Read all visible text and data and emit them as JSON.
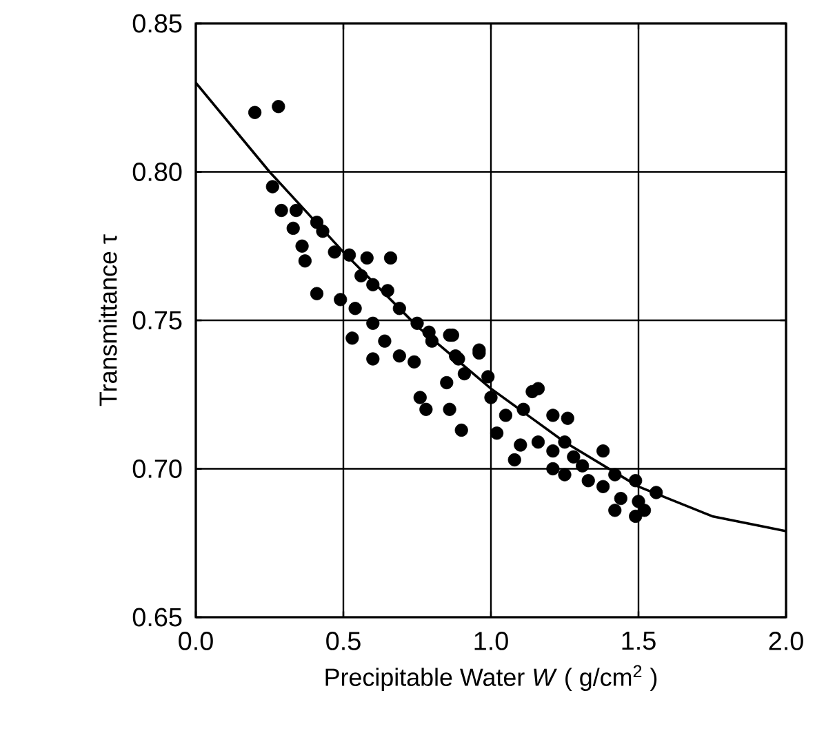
{
  "chart_data": {
    "type": "scatter",
    "xlabel": "Precipitable Water *W*  ( g/cm$^{2}$ )",
    "ylabel": "Transmittance   τ",
    "xlim": [
      0,
      2
    ],
    "ylim": [
      0.65,
      0.85
    ],
    "xticks": [
      {
        "value": 0,
        "label": "0.0"
      },
      {
        "value": 0.5,
        "label": "0.5"
      },
      {
        "value": 1,
        "label": "1.0"
      },
      {
        "value": 1.5,
        "label": "1.5"
      },
      {
        "value": 2,
        "label": "2.0"
      }
    ],
    "yticks": [
      {
        "value": 0.65,
        "label": "0.65"
      },
      {
        "value": 0.7,
        "label": "0.70"
      },
      {
        "value": 0.75,
        "label": "0.75"
      },
      {
        "value": 0.8,
        "label": "0.80"
      },
      {
        "value": 0.85,
        "label": "0.85"
      }
    ],
    "grid": true,
    "marker": "circle",
    "series": [
      {
        "color": "#000000",
        "x": [
          0.2,
          0.28,
          0.26,
          0.29,
          0.34,
          0.33,
          0.41,
          0.43,
          0.36,
          0.37,
          0.41,
          0.47,
          0.52,
          0.58,
          0.66,
          0.49,
          0.54,
          0.56,
          0.6,
          0.65,
          0.53,
          0.6,
          0.6,
          0.69,
          0.75,
          0.64,
          0.69,
          0.74,
          0.8,
          0.86,
          0.88,
          0.96,
          0.76,
          0.78,
          0.85,
          0.91,
          0.9,
          0.99,
          1.0,
          1.14,
          0.79,
          0.87,
          0.96,
          0.86,
          0.89,
          1.16,
          1.05,
          1.11,
          1.21,
          1.26,
          1.02,
          1.1,
          1.08,
          1.16,
          1.21,
          1.25,
          1.28,
          1.38,
          1.21,
          1.25,
          1.31,
          1.42,
          1.33,
          1.38,
          1.49,
          1.56,
          1.44,
          1.5,
          1.42,
          1.52,
          1.49
        ],
        "values": [
          0.82,
          0.822,
          0.795,
          0.787,
          0.787,
          0.781,
          0.783,
          0.78,
          0.775,
          0.77,
          0.759,
          0.773,
          0.772,
          0.771,
          0.771,
          0.757,
          0.754,
          0.765,
          0.762,
          0.76,
          0.744,
          0.749,
          0.737,
          0.754,
          0.749,
          0.743,
          0.738,
          0.736,
          0.743,
          0.745,
          0.738,
          0.739,
          0.724,
          0.72,
          0.729,
          0.732,
          0.713,
          0.731,
          0.724,
          0.726,
          0.746,
          0.745,
          0.74,
          0.72,
          0.737,
          0.727,
          0.718,
          0.72,
          0.718,
          0.717,
          0.712,
          0.708,
          0.703,
          0.709,
          0.706,
          0.709,
          0.704,
          0.706,
          0.7,
          0.698,
          0.701,
          0.698,
          0.696,
          0.694,
          0.696,
          0.692,
          0.69,
          0.689,
          0.686,
          0.686,
          0.684
        ]
      },
      {
        "type": "line",
        "color": "#000000",
        "marker": "none",
        "x": [
          0,
          0.25,
          0.5,
          0.75,
          1.0,
          1.25,
          1.5,
          1.75,
          2.0
        ],
        "values": [
          0.83,
          0.8,
          0.773,
          0.748,
          0.727,
          0.709,
          0.694,
          0.684,
          0.679
        ]
      }
    ]
  }
}
